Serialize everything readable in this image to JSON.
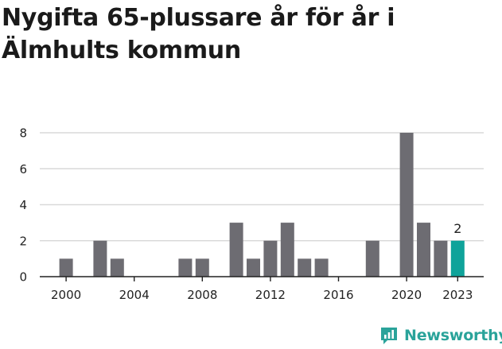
{
  "title": "Nygifta 65-plussare år för år i Älmhults kommun",
  "brand": {
    "name": "Newsworthy",
    "logo_icon": "newsworthy-chart-logo-icon",
    "color": "#2aa39a"
  },
  "colors": {
    "bar": "#6d6c72",
    "highlight": "#0fa39a",
    "grid": "#d9d9d9",
    "axis": "#222222"
  },
  "chart_data": {
    "type": "bar",
    "title": "Nygifta 65-plussare år för år i Älmhults kommun",
    "xlabel": "",
    "ylabel": "",
    "x": [
      2000,
      2001,
      2002,
      2003,
      2004,
      2005,
      2006,
      2007,
      2008,
      2009,
      2010,
      2011,
      2012,
      2013,
      2014,
      2015,
      2016,
      2017,
      2018,
      2019,
      2020,
      2021,
      2022,
      2023
    ],
    "values": [
      1,
      0,
      2,
      1,
      0,
      0,
      0,
      1,
      1,
      0,
      3,
      1,
      2,
      3,
      1,
      1,
      0,
      0,
      2,
      0,
      8,
      3,
      2,
      2
    ],
    "ylim": [
      0,
      8
    ],
    "yticks": [
      0,
      2,
      4,
      6,
      8
    ],
    "xticks": [
      2000,
      2004,
      2008,
      2012,
      2016,
      2020,
      2023
    ],
    "highlight": {
      "x": 2023,
      "label": "2"
    },
    "grid": true
  }
}
